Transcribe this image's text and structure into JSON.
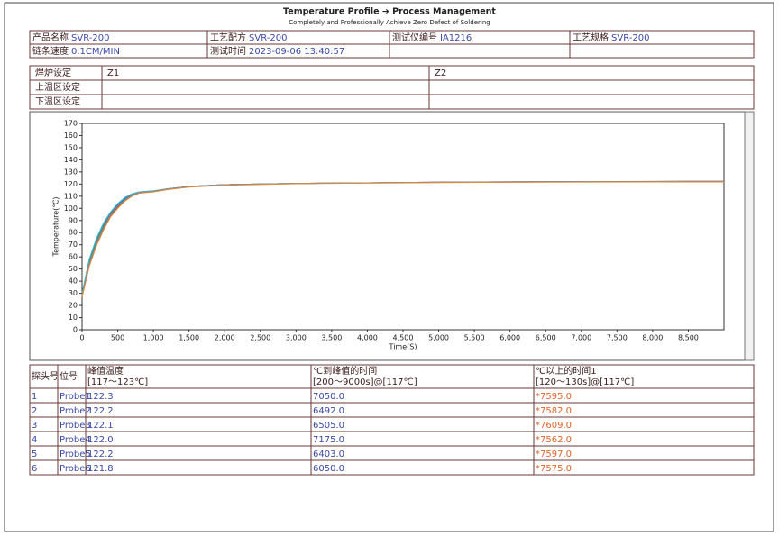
{
  "header": {
    "title": "Temperature Profile ➔ Process Management",
    "subtitle": "Completely and Professionally Achieve Zero Defect of Soldering"
  },
  "info": {
    "rows": [
      [
        {
          "label": "产品名称",
          "value": "SVR-200"
        },
        {
          "label": "工艺配方",
          "value": "SVR-200"
        },
        {
          "label": "测试仪编号",
          "value": "IA1216"
        },
        {
          "label": "工艺规格",
          "value": "SVR-200"
        }
      ],
      [
        {
          "label": "链条速度",
          "value": "0.1CM/MIN"
        },
        {
          "label": "测试时间",
          "value": "2023-09-06 13:40:57"
        }
      ]
    ]
  },
  "zones": {
    "header": [
      "焊炉设定",
      "Z1",
      "Z2"
    ],
    "rows": [
      "上温区设定",
      "下温区设定"
    ]
  },
  "chart_data": {
    "type": "line",
    "y_label": "Temperature(℃)",
    "x_label": "Time(S)",
    "x": [
      0,
      100,
      200,
      300,
      400,
      500,
      600,
      700,
      800,
      1000,
      1200,
      1500,
      2000,
      3000,
      4000,
      5000,
      6000,
      7000,
      8000,
      9000
    ],
    "series": [
      {
        "color": "#2f6fb0",
        "values": [
          28,
          56,
          73,
          86,
          96,
          103,
          108,
          111.5,
          113,
          114,
          116,
          118,
          119.5,
          120.5,
          121,
          121.5,
          121.8,
          122,
          122.2,
          122.3
        ]
      },
      {
        "color": "#d63a3a",
        "values": [
          27,
          53,
          70,
          83,
          94,
          101,
          106,
          110.5,
          112.5,
          114,
          116,
          118,
          119.5,
          120.5,
          121,
          121.5,
          121.8,
          122,
          122.1,
          122.2
        ]
      },
      {
        "color": "#3a9a4a",
        "values": [
          29,
          55,
          72,
          85,
          95,
          102,
          107,
          111,
          113,
          114,
          116,
          118,
          119.5,
          120.5,
          121,
          121.4,
          121.7,
          121.9,
          122,
          122.1
        ]
      },
      {
        "color": "#40b8c8",
        "values": [
          30,
          58,
          75,
          88,
          97,
          104,
          109,
          112,
          113.5,
          114.5,
          116,
          118,
          119.5,
          120.5,
          121,
          121.4,
          121.7,
          121.9,
          122,
          122
        ]
      },
      {
        "color": "#7a8aa0",
        "values": [
          28,
          54,
          71,
          84,
          95,
          102,
          107,
          111,
          113,
          114,
          116,
          118,
          119.5,
          120.5,
          121,
          121.5,
          121.8,
          122,
          122.1,
          122.2
        ]
      },
      {
        "color": "#e08a3a",
        "values": [
          27,
          52,
          69,
          82,
          93,
          100,
          106,
          110,
          112.5,
          113.5,
          115.5,
          117.5,
          119,
          120.3,
          120.8,
          121.2,
          121.5,
          121.7,
          121.8,
          121.8
        ]
      }
    ],
    "xlim": [
      0,
      9000
    ],
    "ylim": [
      0,
      170
    ],
    "xticks": [
      0,
      500,
      {
        "value": 1000,
        "label": "1,000"
      },
      {
        "value": 1500,
        "label": "1,500"
      },
      {
        "value": 2000,
        "label": "2,000"
      },
      {
        "value": 2500,
        "label": "2,500"
      },
      {
        "value": 3000,
        "label": "3,000"
      },
      {
        "value": 3500,
        "label": "3,500"
      },
      {
        "value": 4000,
        "label": "4,000"
      },
      {
        "value": 4500,
        "label": "4,500"
      },
      {
        "value": 5000,
        "label": "5,000"
      },
      {
        "value": 5500,
        "label": "5,500"
      },
      {
        "value": 6000,
        "label": "6,000"
      },
      {
        "value": 6500,
        "label": "6,500"
      },
      {
        "value": 7000,
        "label": "7,000"
      },
      {
        "value": 7500,
        "label": "7,500"
      },
      {
        "value": 8000,
        "label": "8,000"
      },
      {
        "value": 8500,
        "label": "8,500"
      }
    ],
    "yticks": [
      0,
      10,
      20,
      30,
      40,
      50,
      60,
      70,
      80,
      90,
      100,
      110,
      120,
      130,
      140,
      150,
      160,
      170
    ],
    "grid": false
  },
  "results": {
    "columns": [
      {
        "title": "探头号"
      },
      {
        "title": "位号"
      },
      {
        "title": "峰值温度",
        "range": "[117～123℃]"
      },
      {
        "title": "℃到峰值的时间",
        "range": "[200～9000s]@[117℃]"
      },
      {
        "title": "℃以上的时间1",
        "range": "[120～130s]@[117℃]"
      }
    ],
    "rows": [
      [
        "1",
        "Probe1",
        "122.3",
        "7050.0",
        "*7595.0"
      ],
      [
        "2",
        "Probe2",
        "122.2",
        "6492.0",
        "*7582.0"
      ],
      [
        "3",
        "Probe3",
        "122.1",
        "6505.0",
        "*7609.0"
      ],
      [
        "4",
        "Probe4",
        "122.0",
        "7175.0",
        "*7562.0"
      ],
      [
        "5",
        "Probe5",
        "122.2",
        "6403.0",
        "*7597.0"
      ],
      [
        "6",
        "Probe6",
        "121.8",
        "6050.0",
        "*7575.0"
      ]
    ]
  }
}
